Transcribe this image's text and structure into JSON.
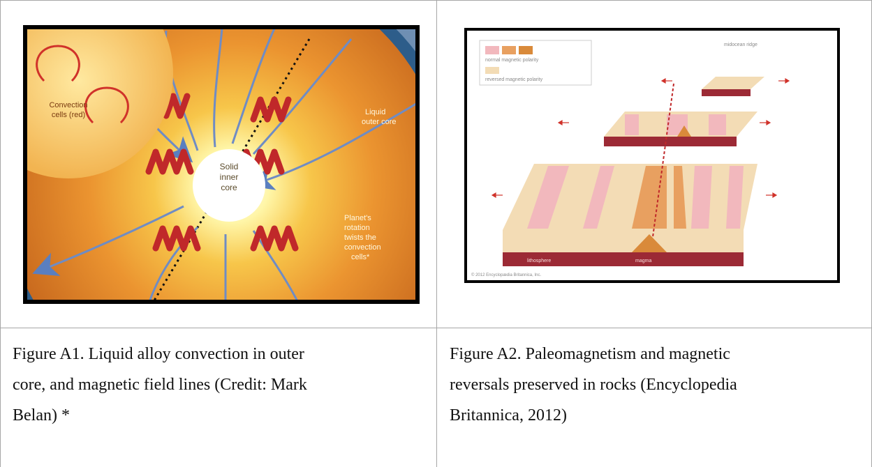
{
  "figure_a1": {
    "image_labels": {
      "convection_cells": [
        "Convection",
        "cells (red)"
      ],
      "liquid_outer_core": [
        "Liquid",
        "outer core"
      ],
      "solid_inner_core": [
        "Solid",
        "inner",
        "core"
      ],
      "planet_rotation": [
        "Planet's",
        "rotation",
        "twists the",
        "convection",
        "cells*"
      ]
    },
    "caption_lines": [
      "Figure A1. Liquid alloy convection in outer",
      "core, and magnetic field lines (Credit: Mark",
      "Belan) *"
    ]
  },
  "figure_a2": {
    "image_labels": {
      "legend_normal": "normal magnetic polarity",
      "legend_reversed": "reversed magnetic polarity",
      "midocean_ridge": "midocean ridge",
      "lithosphere": "lithosphere",
      "magma": "magma",
      "copyright": "© 2012 Encyclopædia Britannica, Inc."
    },
    "caption_lines": [
      "Figure A2. Paleomagnetism and magnetic",
      "reversals preserved in rocks (Encyclopedia",
      "Britannica, 2012)"
    ]
  },
  "colors": {
    "border": "#a6a6a6",
    "core_orange": "#e8902a",
    "field_line_blue": "#5a7fc0",
    "convection_red": "#c0282a",
    "normal_pink": "#f2b8bd",
    "reversed_tan": "#f3dcb5",
    "lithosphere_red": "#9c2a35",
    "magma_orange": "#d98a3a"
  }
}
